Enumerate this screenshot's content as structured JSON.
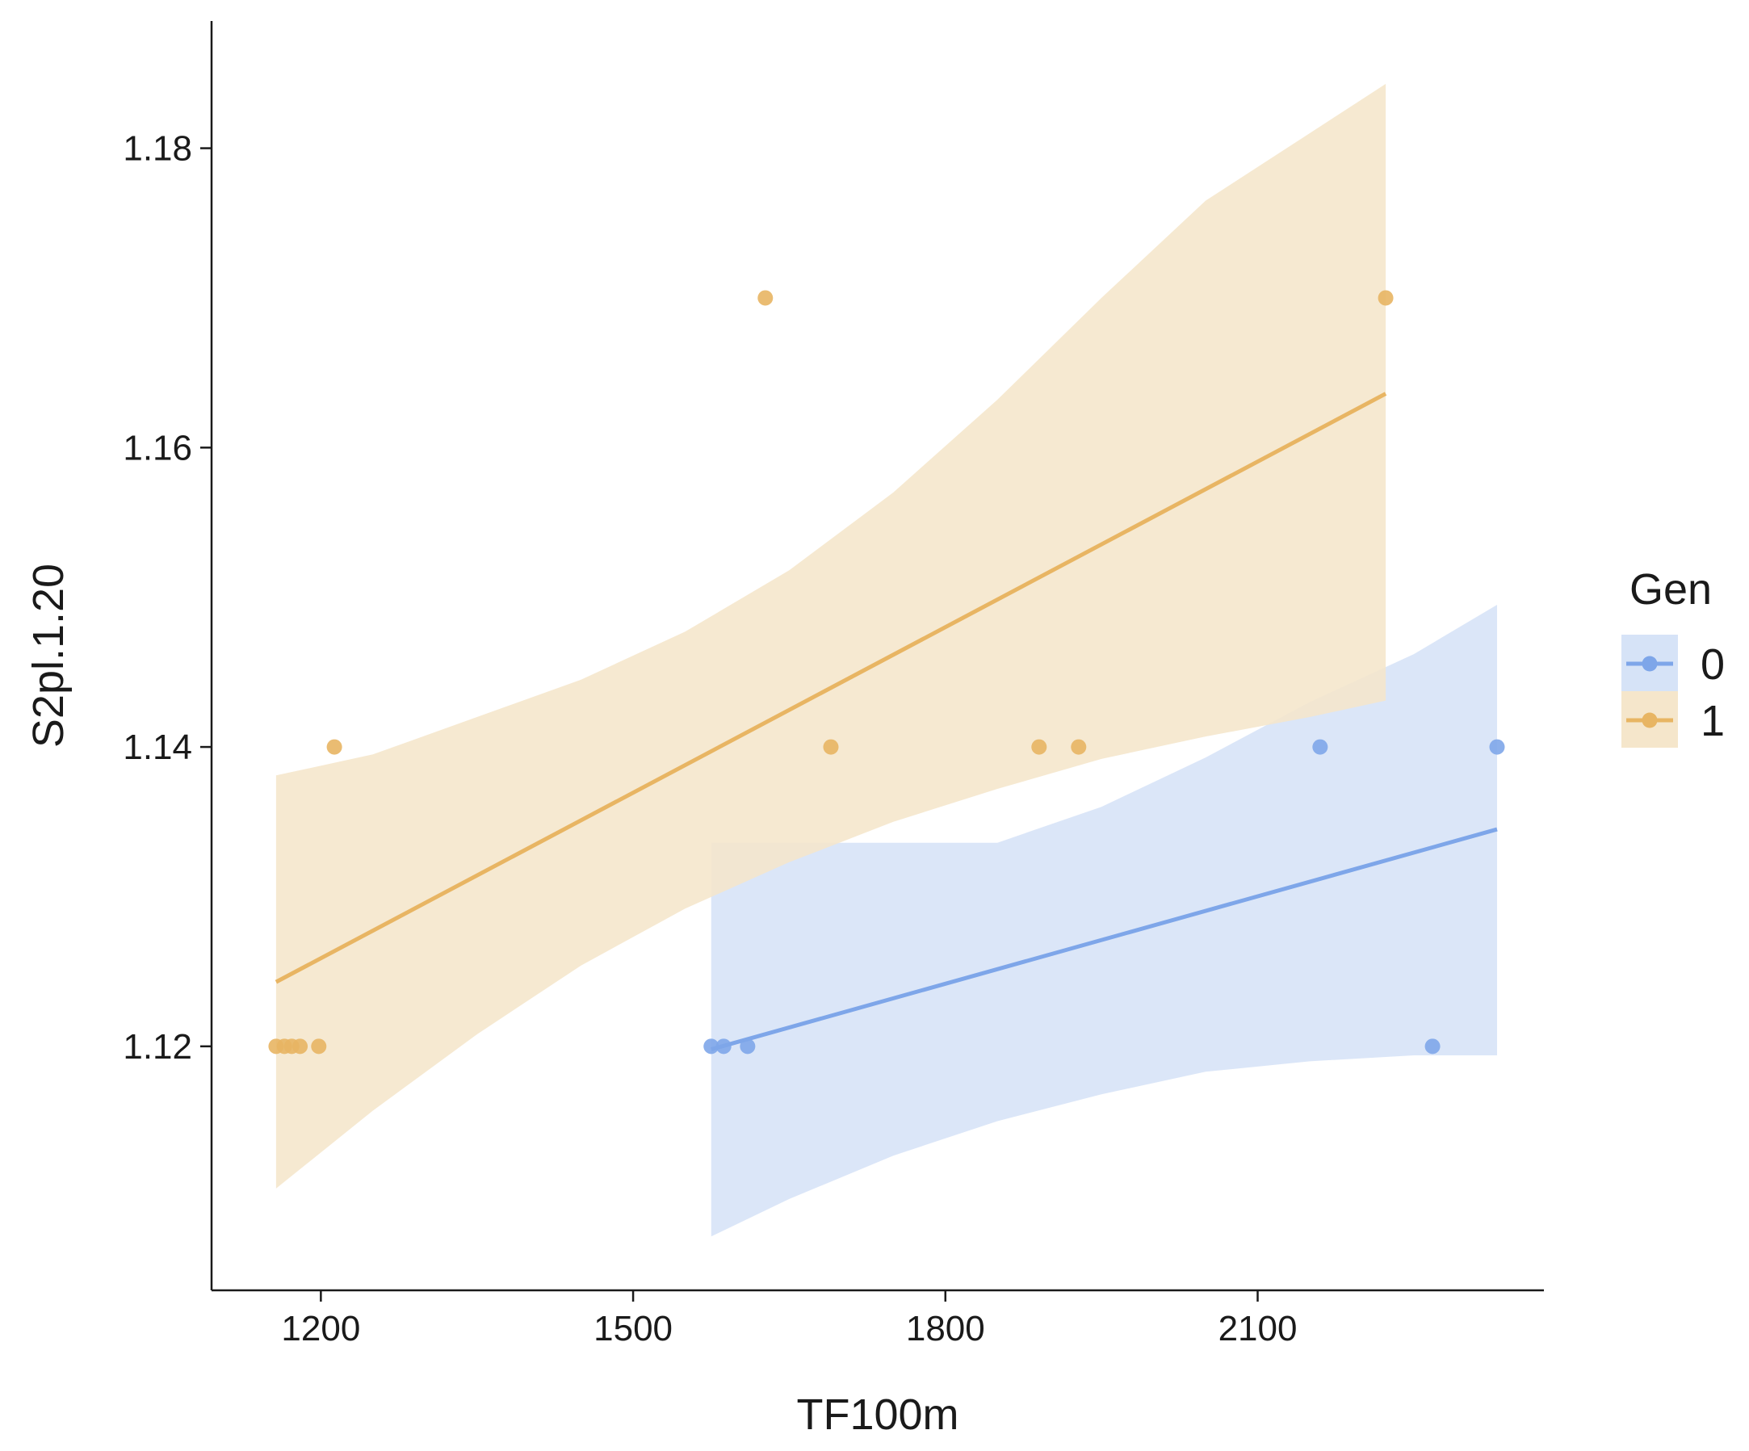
{
  "chart_data": {
    "type": "scatter",
    "xlabel": "TF100m",
    "ylabel": "S2pl.1.20",
    "xlim": [
      1095,
      2375
    ],
    "ylim": [
      1.1037,
      1.1885
    ],
    "x_ticks": [
      1200,
      1500,
      1800,
      2100
    ],
    "x_tick_labels": [
      "1200",
      "1500",
      "1800",
      "2100"
    ],
    "y_ticks": [
      1.12,
      1.14,
      1.16,
      1.18
    ],
    "y_tick_labels": [
      "1.12",
      "1.14",
      "1.16",
      "1.18"
    ],
    "grid": false,
    "legend": {
      "title": "Gen",
      "position": "right"
    },
    "series": [
      {
        "name": "0",
        "color": "#7ea6e9",
        "band_color": "#d6e3f7",
        "points": [
          {
            "x": 1575,
            "y": 1.12
          },
          {
            "x": 1587,
            "y": 1.12
          },
          {
            "x": 1610,
            "y": 1.12
          },
          {
            "x": 2160,
            "y": 1.14
          },
          {
            "x": 2268,
            "y": 1.12
          },
          {
            "x": 2330,
            "y": 1.14
          }
        ],
        "fit": [
          {
            "x": 1575,
            "y": 1.1198
          },
          {
            "x": 2330,
            "y": 1.1345
          }
        ],
        "band": {
          "x": [
            1575,
            1650,
            1750,
            1850,
            1950,
            2050,
            2150,
            2250,
            2330
          ],
          "lower": [
            1.1073,
            1.1098,
            1.1127,
            1.115,
            1.1168,
            1.1183,
            1.119,
            1.1194,
            1.1194
          ],
          "upper": [
            1.1336,
            1.1336,
            1.1336,
            1.1336,
            1.136,
            1.1393,
            1.143,
            1.1462,
            1.1495
          ]
        }
      },
      {
        "name": "1",
        "color": "#e8b563",
        "band_color": "#f5e6cb",
        "points": [
          {
            "x": 1157,
            "y": 1.12
          },
          {
            "x": 1165,
            "y": 1.12
          },
          {
            "x": 1172,
            "y": 1.12
          },
          {
            "x": 1180,
            "y": 1.12
          },
          {
            "x": 1198,
            "y": 1.12
          },
          {
            "x": 1213,
            "y": 1.14
          },
          {
            "x": 1627,
            "y": 1.17
          },
          {
            "x": 1690,
            "y": 1.14
          },
          {
            "x": 1890,
            "y": 1.14
          },
          {
            "x": 1928,
            "y": 1.14
          },
          {
            "x": 2223,
            "y": 1.17
          }
        ],
        "fit": [
          {
            "x": 1157,
            "y": 1.1243
          },
          {
            "x": 2223,
            "y": 1.1636
          }
        ],
        "band": {
          "x": [
            1157,
            1250,
            1350,
            1450,
            1550,
            1650,
            1750,
            1850,
            1950,
            2050,
            2150,
            2223
          ],
          "lower": [
            1.1105,
            1.1157,
            1.1208,
            1.1254,
            1.1292,
            1.1323,
            1.135,
            1.1372,
            1.1392,
            1.1407,
            1.142,
            1.1431
          ],
          "upper": [
            1.1381,
            1.1395,
            1.142,
            1.1445,
            1.1477,
            1.1518,
            1.157,
            1.1632,
            1.17,
            1.1765,
            1.181,
            1.1843
          ]
        }
      }
    ]
  }
}
